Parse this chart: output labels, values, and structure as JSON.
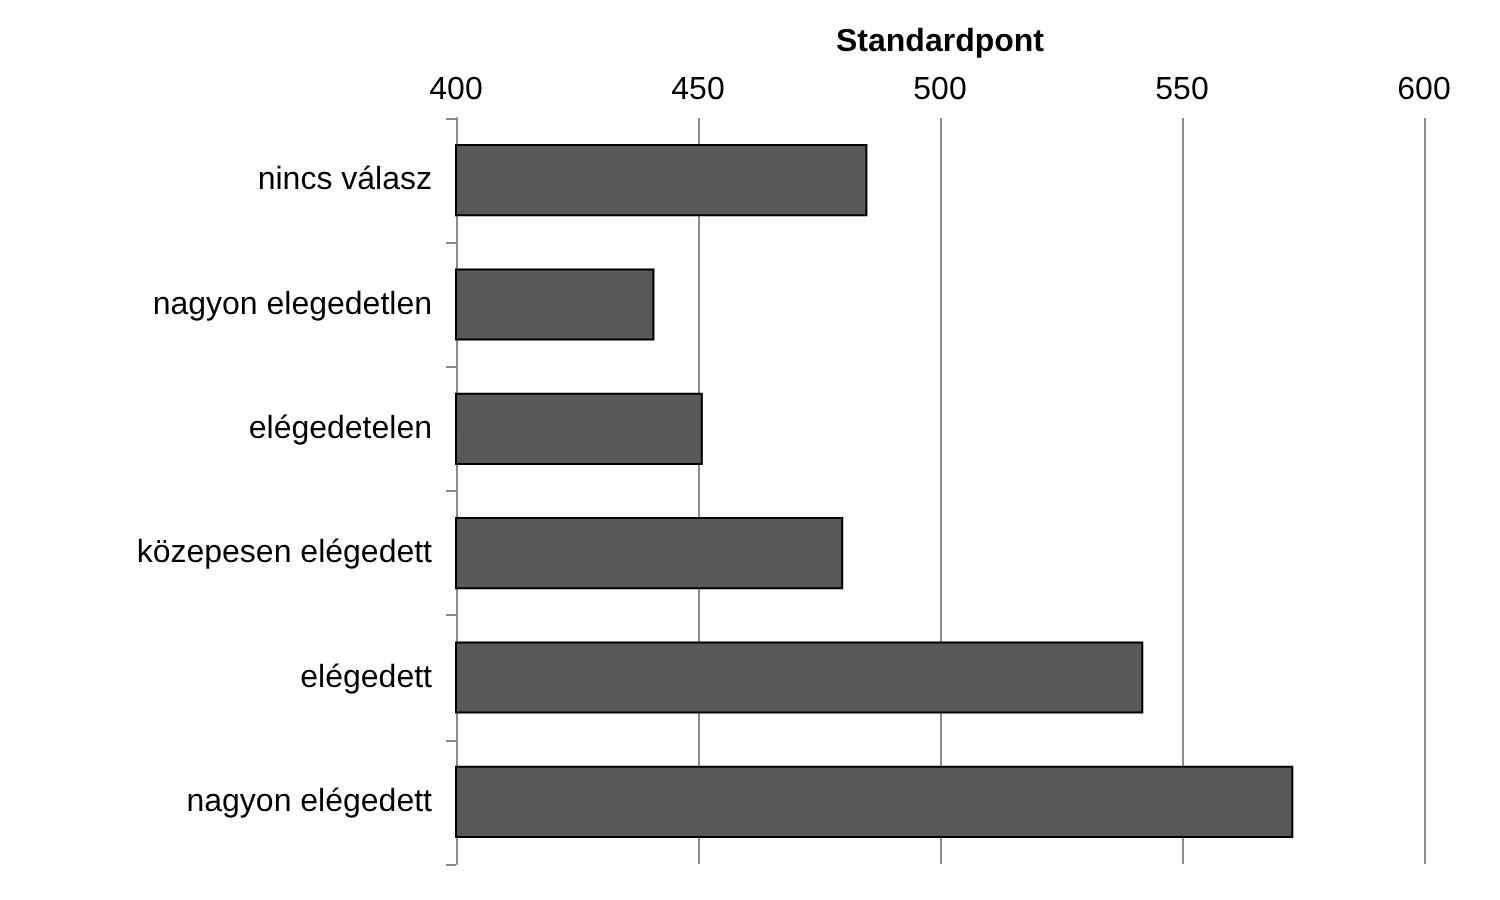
{
  "chart_data": {
    "type": "bar",
    "orientation": "horizontal",
    "xlabel": "Standardpont",
    "categories": [
      "nincs válasz",
      "nagyon elegedetlen",
      "elégedetelen",
      "közepesen elégedett",
      "elégedett",
      "nagyon elégedett"
    ],
    "values": [
      485,
      441,
      451,
      480,
      542,
      573
    ],
    "color": "#595959",
    "xlim": [
      400,
      600
    ],
    "xticks": [
      400,
      450,
      500,
      550,
      600
    ],
    "grid": "x"
  }
}
